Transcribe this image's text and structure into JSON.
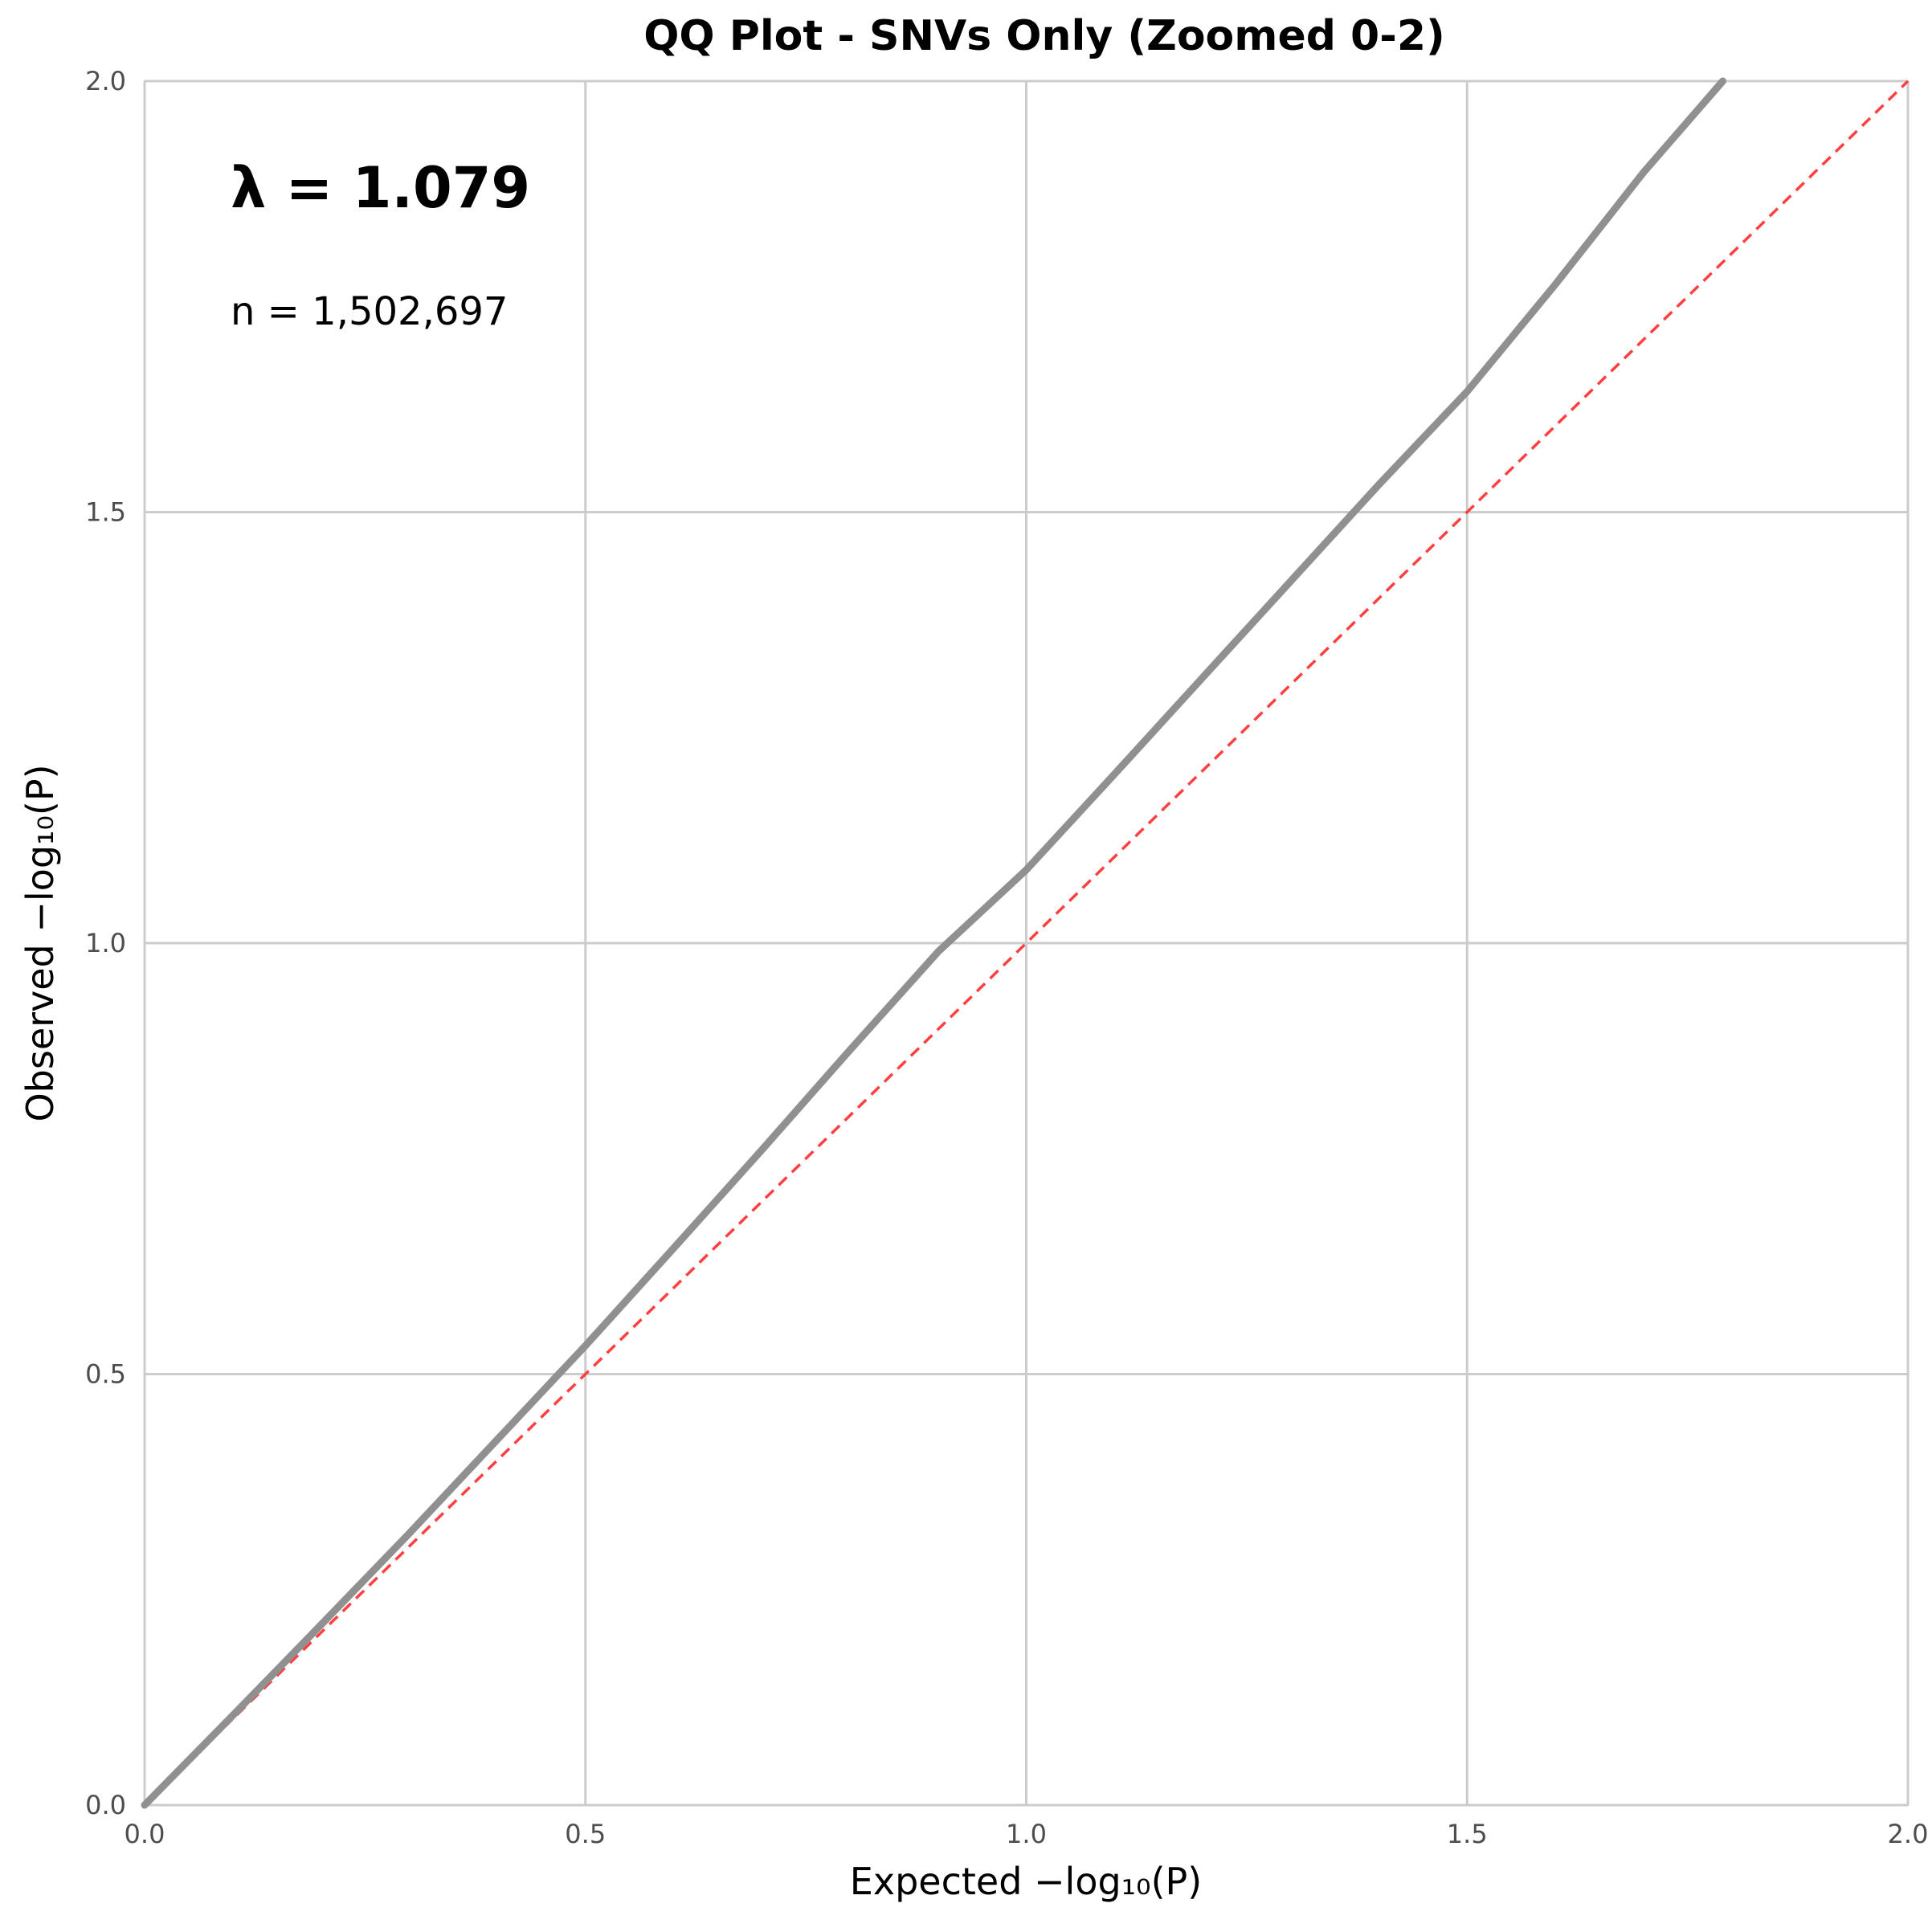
{
  "chart_data": {
    "type": "line",
    "title": "QQ Plot - SNVs Only (Zoomed 0-2)",
    "xlabel": "Expected −log₁₀(P)",
    "ylabel": "Observed −log₁₀(P)",
    "xlim": [
      0,
      2
    ],
    "ylim": [
      0,
      2
    ],
    "x_ticks": [
      "0.0",
      "0.5",
      "1.0",
      "1.5",
      "2.0"
    ],
    "y_ticks": [
      "0.0",
      "0.5",
      "1.0",
      "1.5",
      "2.0"
    ],
    "grid": true,
    "annotations": {
      "lambda": "λ = 1.079",
      "n": "n = 1,502,697"
    },
    "series": [
      {
        "color": "#909090",
        "x": [
          0.0,
          0.1,
          0.2,
          0.3,
          0.4,
          0.5,
          0.6,
          0.7,
          0.8,
          0.9,
          1.0,
          1.1,
          1.2,
          1.3,
          1.4,
          1.5,
          1.6,
          1.7,
          1.79
        ],
        "y": [
          0.0,
          0.104,
          0.209,
          0.315,
          0.424,
          0.533,
          0.646,
          0.76,
          0.876,
          0.99,
          1.085,
          1.196,
          1.308,
          1.42,
          1.532,
          1.64,
          1.764,
          1.894,
          2.0
        ]
      },
      {
        "color": "#ff4040",
        "x": [
          0,
          2
        ],
        "y": [
          0,
          2
        ]
      }
    ]
  }
}
